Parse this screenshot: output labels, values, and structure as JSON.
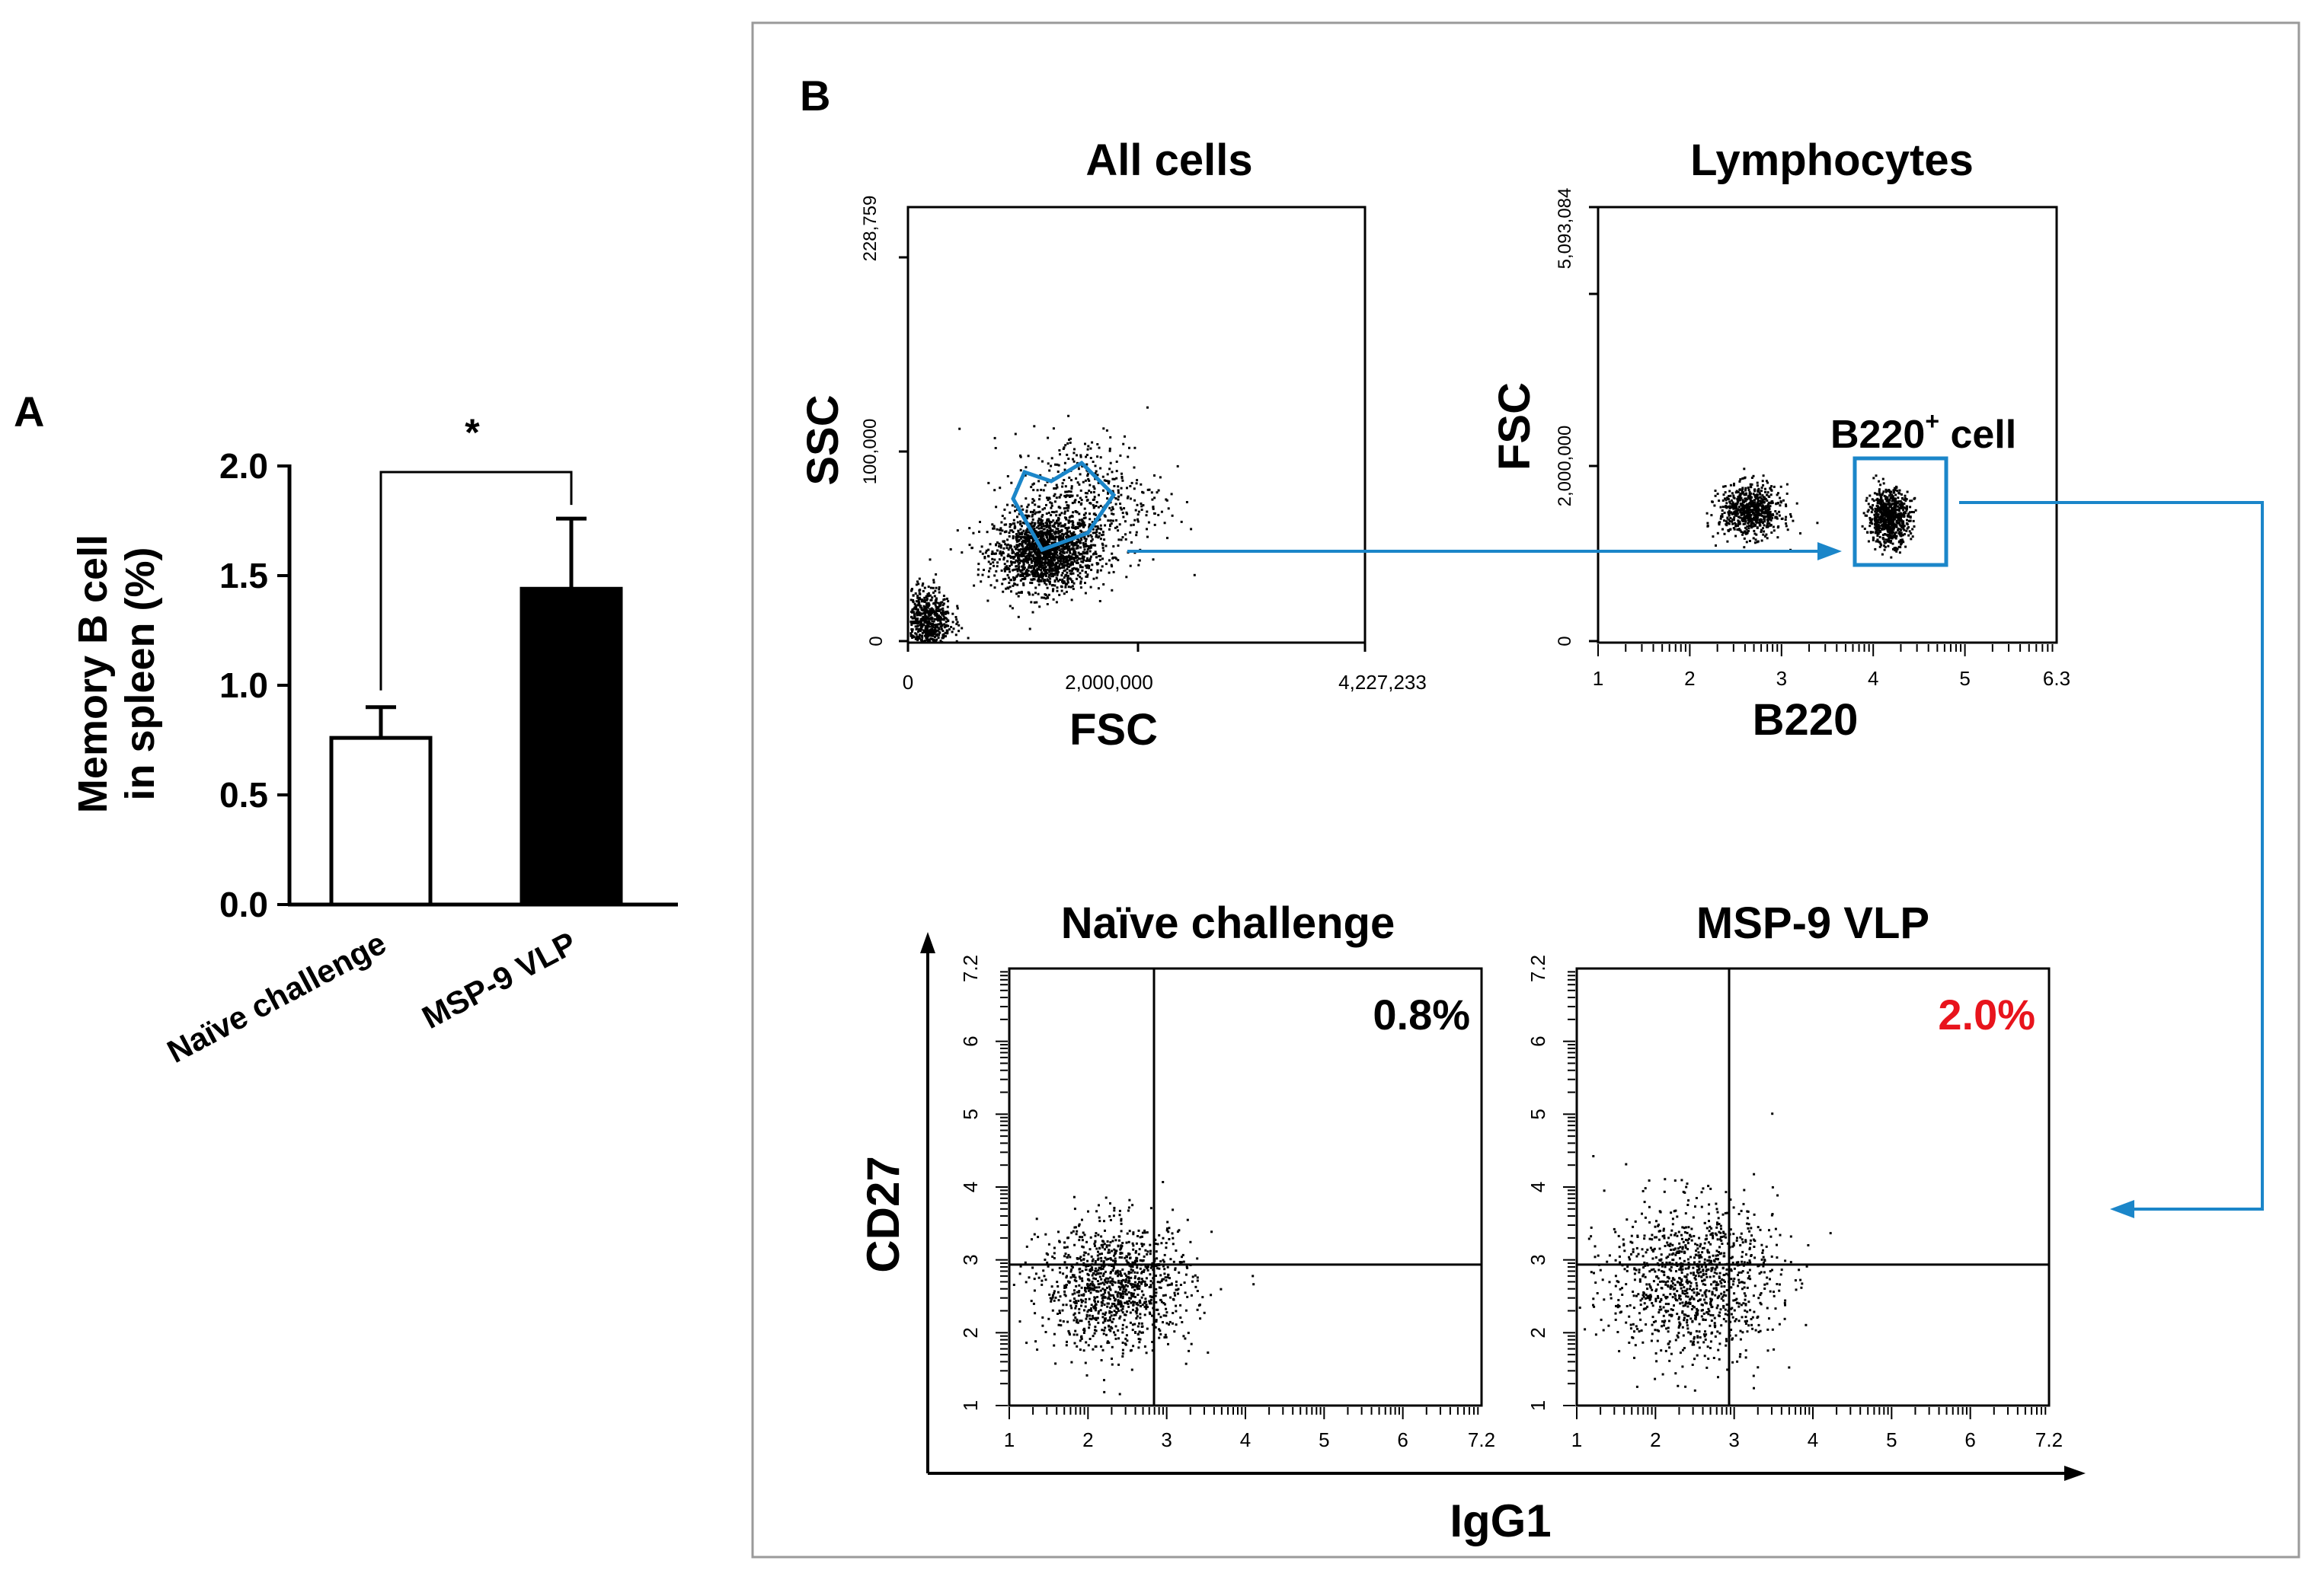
{
  "colors": {
    "ink": "#000000",
    "gate": "#1b86c9",
    "highlight": "#e8141c",
    "panel_border": "#9a9a9a"
  },
  "chart_data": [
    {
      "panel": "A",
      "type": "bar",
      "categories": [
        "Naïve challenge",
        "MSP-9 VLP"
      ],
      "values": [
        0.76,
        1.44
      ],
      "errors": [
        0.14,
        0.32
      ],
      "bar_fills": [
        "#ffffff",
        "#000000"
      ],
      "ylabel_lines": [
        "Memory B cell",
        "in spleen (%)"
      ],
      "ylim": [
        0,
        2.0
      ],
      "yticks": [
        0.0,
        0.5,
        1.0,
        1.5,
        2.0
      ],
      "ytick_labels": [
        "0.0",
        "0.5",
        "1.0",
        "1.5",
        "2.0"
      ],
      "significance": "*"
    },
    {
      "panel": "B",
      "type": "scatter",
      "title": "All cells",
      "xlabel": "FSC",
      "ylabel": "SSC",
      "xlim": [
        0,
        4227233
      ],
      "ylim": [
        0,
        228759
      ],
      "xtick_labels": [
        "0",
        "2,000,000",
        "4,227,233"
      ],
      "ytick_labels": [
        "0",
        "100,000",
        "228,759"
      ],
      "clusters": [
        {
          "cx": 1250000,
          "cy": 48000,
          "sx": 230000,
          "sy": 10000,
          "n": 2600
        },
        {
          "cx": 1650000,
          "cy": 75000,
          "sx": 350000,
          "sy": 18000,
          "n": 500
        },
        {
          "cx": 150000,
          "cy": 12000,
          "sx": 120000,
          "sy": 9000,
          "n": 700
        }
      ],
      "gate": "polygon"
    },
    {
      "panel": "B",
      "type": "scatter",
      "title": "Lymphocytes",
      "xlabel": "B220",
      "ylabel": "FSC",
      "xlim": [
        1,
        6.3
      ],
      "ylim": [
        0,
        5093084
      ],
      "xtick_labels": [
        "1",
        "2",
        "3",
        "4",
        "5",
        "6.3"
      ],
      "ytick_labels": [
        "0",
        "2,000,000",
        "5,093,084"
      ],
      "clusters": [
        {
          "cx": 2.75,
          "cy": 1550000,
          "sx": 0.18,
          "sy": 150000,
          "n": 900
        },
        {
          "cx": 4.35,
          "cy": 1480000,
          "sx": 0.12,
          "sy": 160000,
          "n": 900
        }
      ],
      "gate_label": "B220⁺ cell",
      "gate_label_main": "B220",
      "gate_label_sup": "+",
      "gate_label_rest": " cell"
    },
    {
      "panel": "B",
      "type": "scatter",
      "title": "Naïve challenge",
      "xlabel": "IgG1",
      "ylabel": "CD27",
      "xlim": [
        1,
        7.2
      ],
      "ylim": [
        1,
        7.2
      ],
      "xtick_labels": [
        "1",
        "2",
        "3",
        "4",
        "5",
        "6",
        "7.2"
      ],
      "ytick_labels": [
        "1",
        "2",
        "3",
        "4",
        "5",
        "6",
        "7.2"
      ],
      "quadrant": {
        "x": 2.9,
        "y": 3.0
      },
      "percent": "0.8%",
      "clusters": [
        {
          "cx": 2.4,
          "cy": 2.7,
          "sx": 0.5,
          "sy": 0.45,
          "n": 1300
        }
      ]
    },
    {
      "panel": "B",
      "type": "scatter",
      "title": "MSP-9 VLP",
      "xlabel": "IgG1",
      "ylabel": "CD27",
      "xlim": [
        1,
        7.2
      ],
      "ylim": [
        1,
        7.2
      ],
      "xtick_labels": [
        "1",
        "2",
        "3",
        "4",
        "5",
        "6",
        "7.2"
      ],
      "ytick_labels": [
        "1",
        "2",
        "3",
        "4",
        "5",
        "6",
        "7.2"
      ],
      "quadrant": {
        "x": 3.0,
        "y": 3.0
      },
      "percent": "2.0%",
      "clusters": [
        {
          "cx": 2.5,
          "cy": 2.8,
          "sx": 0.55,
          "sy": 0.55,
          "n": 1500
        }
      ]
    }
  ],
  "labels": {
    "panel_a": "A",
    "panel_b": "B",
    "shared_flow_xlabel": "IgG1",
    "shared_flow_ylabel": "CD27"
  }
}
